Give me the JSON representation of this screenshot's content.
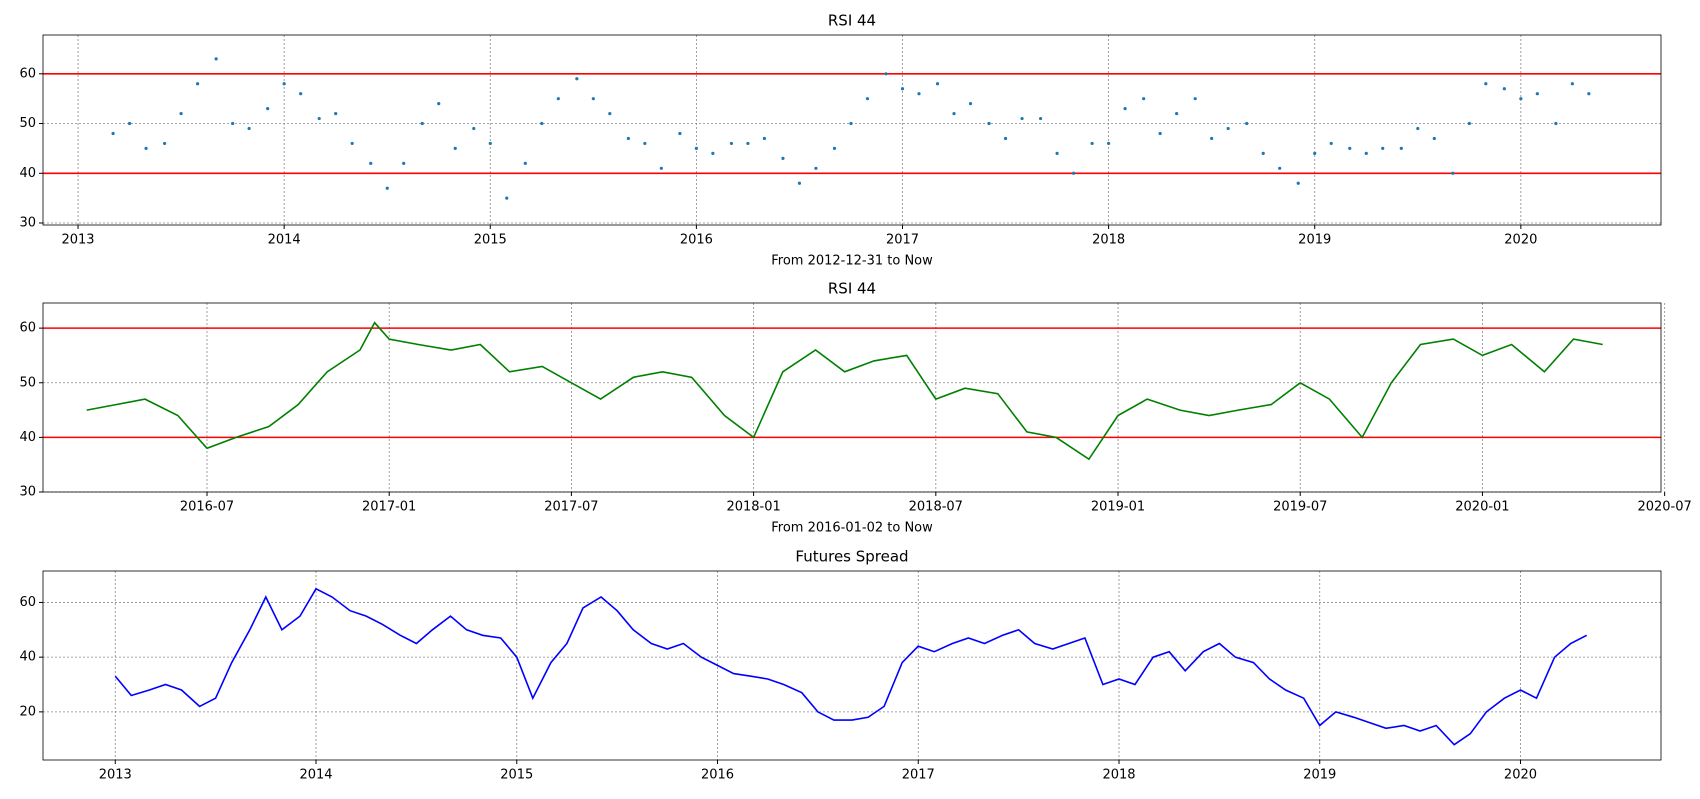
{
  "chart_data": [
    {
      "type": "scatter",
      "title": "RSI 44",
      "xlabel": "From 2012-12-31 to Now",
      "color": "#1f77b4",
      "x": [
        2013.17,
        2013.25,
        2013.33,
        2013.42,
        2013.5,
        2013.58,
        2013.67,
        2013.75,
        2013.83,
        2013.92,
        2014.0,
        2014.08,
        2014.17,
        2014.25,
        2014.33,
        2014.42,
        2014.5,
        2014.58,
        2014.67,
        2014.75,
        2014.83,
        2014.92,
        2015.0,
        2015.08,
        2015.17,
        2015.25,
        2015.33,
        2015.42,
        2015.5,
        2015.58,
        2015.67,
        2015.75,
        2015.83,
        2015.92,
        2016.0,
        2016.08,
        2016.17,
        2016.25,
        2016.33,
        2016.42,
        2016.5,
        2016.58,
        2016.67,
        2016.75,
        2016.83,
        2016.92,
        2017.0,
        2017.08,
        2017.17,
        2017.25,
        2017.33,
        2017.42,
        2017.5,
        2017.58,
        2017.67,
        2017.75,
        2017.83,
        2017.92,
        2018.0,
        2018.08,
        2018.17,
        2018.25,
        2018.33,
        2018.42,
        2018.5,
        2018.58,
        2018.67,
        2018.75,
        2018.83,
        2018.92,
        2019.0,
        2019.08,
        2019.17,
        2019.25,
        2019.33,
        2019.42,
        2019.5,
        2019.58,
        2019.67,
        2019.75,
        2019.83,
        2019.92,
        2020.0,
        2020.08,
        2020.17,
        2020.25,
        2020.33
      ],
      "values": [
        48,
        50,
        45,
        46,
        52,
        58,
        63,
        50,
        49,
        53,
        58,
        56,
        51,
        52,
        46,
        42,
        37,
        42,
        50,
        54,
        45,
        49,
        46,
        35,
        42,
        50,
        55,
        59,
        55,
        52,
        47,
        46,
        41,
        48,
        45,
        44,
        46,
        46,
        47,
        43,
        38,
        41,
        45,
        50,
        55,
        60,
        57,
        56,
        58,
        52,
        54,
        50,
        47,
        51,
        51,
        44,
        40,
        46,
        46,
        53,
        55,
        48,
        52,
        55,
        47,
        49,
        50,
        44,
        41,
        38,
        44,
        46,
        45,
        44,
        45,
        45,
        49,
        47,
        40,
        50,
        58,
        57,
        55,
        56,
        50,
        58,
        56
      ],
      "hlines": [
        40,
        60
      ],
      "hline_color": "#ff0000",
      "xlim": [
        2012.83,
        2020.68
      ],
      "xticks": [
        2013,
        2014,
        2015,
        2016,
        2017,
        2018,
        2019,
        2020
      ],
      "ylim": [
        29.6,
        67.8
      ],
      "yticks": [
        30,
        40,
        50,
        60
      ],
      "grid": true
    },
    {
      "type": "line",
      "title": "RSI 44",
      "xlabel": "From 2016-01-02 to Now",
      "color": "#008000",
      "x": [
        2016.17,
        2016.25,
        2016.33,
        2016.42,
        2016.5,
        2016.58,
        2016.67,
        2016.75,
        2016.83,
        2016.92,
        2016.96,
        2017.0,
        2017.08,
        2017.17,
        2017.25,
        2017.33,
        2017.42,
        2017.5,
        2017.58,
        2017.67,
        2017.75,
        2017.83,
        2017.92,
        2018.0,
        2018.08,
        2018.17,
        2018.25,
        2018.33,
        2018.42,
        2018.5,
        2018.58,
        2018.67,
        2018.75,
        2018.83,
        2018.92,
        2019.0,
        2019.08,
        2019.17,
        2019.25,
        2019.33,
        2019.42,
        2019.5,
        2019.58,
        2019.67,
        2019.75,
        2019.83,
        2019.92,
        2020.0,
        2020.08,
        2020.17,
        2020.25,
        2020.33
      ],
      "values": [
        45,
        46,
        47,
        44,
        38,
        40,
        42,
        46,
        52,
        56,
        61,
        58,
        57,
        56,
        57,
        52,
        53,
        50,
        47,
        51,
        52,
        51,
        44,
        40,
        52,
        56,
        52,
        54,
        55,
        47,
        49,
        48,
        41,
        40,
        36,
        44,
        47,
        45,
        44,
        45,
        46,
        50,
        47,
        40,
        50,
        57,
        58,
        55,
        57,
        52,
        58,
        57
      ],
      "hlines": [
        40,
        60
      ],
      "hline_color": "#ff0000",
      "xlim": [
        2016.05,
        2020.49
      ],
      "xticks": [
        {
          "value": 2016.5,
          "label": "2016-07"
        },
        {
          "value": 2017.0,
          "label": "2017-01"
        },
        {
          "value": 2017.5,
          "label": "2017-07"
        },
        {
          "value": 2018.0,
          "label": "2018-01"
        },
        {
          "value": 2018.5,
          "label": "2018-07"
        },
        {
          "value": 2019.0,
          "label": "2019-01"
        },
        {
          "value": 2019.5,
          "label": "2019-07"
        },
        {
          "value": 2020.0,
          "label": "2020-01"
        },
        {
          "value": 2020.5,
          "label": "2020-07"
        }
      ],
      "ylim": [
        30,
        64.6
      ],
      "yticks": [
        30,
        40,
        50,
        60
      ],
      "grid": true
    },
    {
      "type": "line",
      "title": "Futures Spread",
      "color": "#0000ff",
      "x": [
        2013.0,
        2013.08,
        2013.17,
        2013.25,
        2013.33,
        2013.42,
        2013.5,
        2013.58,
        2013.67,
        2013.75,
        2013.83,
        2013.92,
        2014.0,
        2014.08,
        2014.17,
        2014.25,
        2014.33,
        2014.42,
        2014.5,
        2014.58,
        2014.67,
        2014.75,
        2014.83,
        2014.92,
        2015.0,
        2015.08,
        2015.17,
        2015.25,
        2015.33,
        2015.42,
        2015.5,
        2015.58,
        2015.67,
        2015.75,
        2015.83,
        2015.92,
        2016.0,
        2016.08,
        2016.17,
        2016.25,
        2016.33,
        2016.42,
        2016.5,
        2016.58,
        2016.67,
        2016.75,
        2016.83,
        2016.92,
        2017.0,
        2017.08,
        2017.17,
        2017.25,
        2017.33,
        2017.42,
        2017.5,
        2017.58,
        2017.67,
        2017.75,
        2017.83,
        2017.92,
        2018.0,
        2018.08,
        2018.17,
        2018.25,
        2018.33,
        2018.42,
        2018.5,
        2018.58,
        2018.67,
        2018.75,
        2018.83,
        2018.92,
        2019.0,
        2019.08,
        2019.17,
        2019.25,
        2019.33,
        2019.42,
        2019.5,
        2019.58,
        2019.67,
        2019.75,
        2019.83,
        2019.92,
        2020.0,
        2020.08,
        2020.17,
        2020.25,
        2020.33
      ],
      "values": [
        33,
        26,
        28,
        30,
        28,
        22,
        25,
        38,
        50,
        62,
        50,
        55,
        65,
        62,
        57,
        55,
        52,
        48,
        45,
        50,
        55,
        50,
        48,
        47,
        40,
        25,
        38,
        45,
        58,
        62,
        57,
        50,
        45,
        43,
        45,
        40,
        37,
        34,
        33,
        32,
        30,
        27,
        20,
        17,
        17,
        18,
        22,
        38,
        44,
        42,
        45,
        47,
        45,
        48,
        50,
        45,
        43,
        45,
        47,
        30,
        32,
        30,
        40,
        42,
        35,
        42,
        45,
        40,
        38,
        32,
        28,
        25,
        15,
        20,
        18,
        16,
        14,
        15,
        13,
        15,
        8,
        12,
        20,
        25,
        28,
        25,
        40,
        45,
        48
      ],
      "xlim": [
        2012.64,
        2020.7
      ],
      "xticks": [
        2013,
        2014,
        2015,
        2016,
        2017,
        2018,
        2019,
        2020
      ],
      "ylim": [
        2.4,
        71.5
      ],
      "yticks": [
        20,
        40,
        60
      ],
      "grid": true
    }
  ]
}
